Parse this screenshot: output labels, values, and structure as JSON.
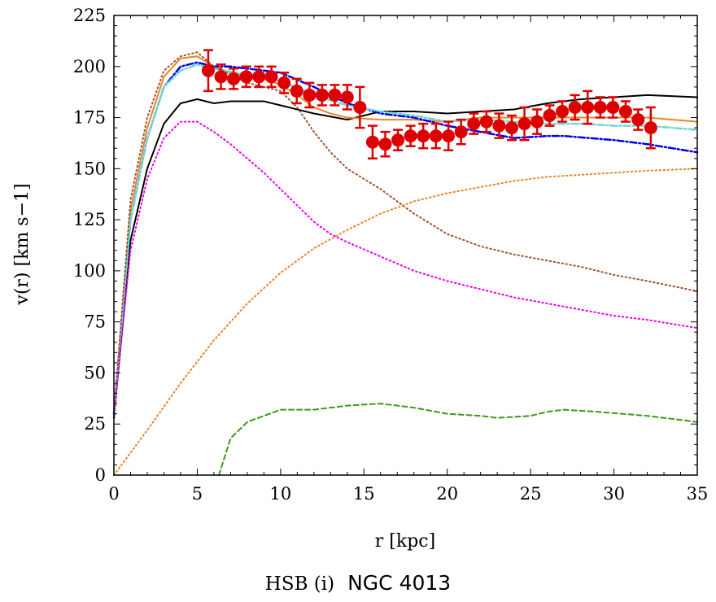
{
  "chart_data": {
    "type": "line",
    "xlabel": "r [kpc]",
    "ylabel": "v(r) [km s−1]",
    "caption_left": "HSB (i)",
    "caption_right": "NGC 4013",
    "xlim": [
      0,
      35
    ],
    "ylim": [
      0,
      225
    ],
    "xticks": [
      0,
      5,
      10,
      15,
      20,
      25,
      30,
      35
    ],
    "yticks": [
      0,
      25,
      50,
      75,
      100,
      125,
      150,
      175,
      200,
      225
    ],
    "grid": false,
    "series": [
      {
        "style": "solid",
        "color": "#000000",
        "points": [
          [
            0,
            28
          ],
          [
            1,
            115
          ],
          [
            2,
            150
          ],
          [
            3,
            172
          ],
          [
            4,
            182
          ],
          [
            5,
            184
          ],
          [
            6,
            182
          ],
          [
            7,
            183
          ],
          [
            8,
            183
          ],
          [
            9,
            183
          ],
          [
            10,
            181
          ],
          [
            12,
            177
          ],
          [
            14,
            174
          ],
          [
            16,
            178
          ],
          [
            18,
            178
          ],
          [
            20,
            177
          ],
          [
            22,
            178
          ],
          [
            24,
            179
          ],
          [
            26,
            182
          ],
          [
            28,
            184
          ],
          [
            30,
            185
          ],
          [
            32,
            186
          ],
          [
            35,
            185
          ]
        ]
      },
      {
        "style": "solid",
        "color": "#e8852a",
        "points": [
          [
            0,
            30
          ],
          [
            1,
            130
          ],
          [
            2,
            170
          ],
          [
            3,
            195
          ],
          [
            4,
            204
          ],
          [
            5,
            205
          ],
          [
            6,
            200
          ],
          [
            7,
            197
          ],
          [
            8,
            195
          ],
          [
            9,
            194
          ],
          [
            10,
            191
          ],
          [
            11,
            186
          ],
          [
            12,
            180
          ],
          [
            13,
            177
          ],
          [
            14,
            175
          ],
          [
            16,
            174
          ],
          [
            18,
            174
          ],
          [
            20,
            173
          ],
          [
            22,
            175
          ],
          [
            24,
            175
          ],
          [
            26,
            175
          ],
          [
            28,
            175
          ],
          [
            30,
            175
          ],
          [
            32,
            175
          ],
          [
            35,
            173
          ]
        ]
      },
      {
        "style": "dashdot",
        "color": "#0000ee",
        "points": [
          [
            0,
            30
          ],
          [
            1,
            125
          ],
          [
            2,
            165
          ],
          [
            3,
            190
          ],
          [
            4,
            200
          ],
          [
            5,
            202
          ],
          [
            6,
            200
          ],
          [
            7,
            200
          ],
          [
            8,
            199
          ],
          [
            10,
            197
          ],
          [
            12,
            190
          ],
          [
            14,
            182
          ],
          [
            16,
            177
          ],
          [
            18,
            175
          ],
          [
            20,
            171
          ],
          [
            22,
            168
          ],
          [
            24,
            165
          ],
          [
            26,
            166
          ],
          [
            27,
            166
          ],
          [
            30,
            164
          ],
          [
            32,
            162
          ],
          [
            35,
            158
          ]
        ]
      },
      {
        "style": "dashdot",
        "color": "#6fd6d6",
        "points": [
          [
            0,
            30
          ],
          [
            1,
            125
          ],
          [
            2,
            165
          ],
          [
            3,
            190
          ],
          [
            4,
            198
          ],
          [
            5,
            201
          ],
          [
            6,
            199
          ],
          [
            8,
            196
          ],
          [
            10,
            193
          ],
          [
            12,
            186
          ],
          [
            14,
            181
          ],
          [
            16,
            178
          ],
          [
            18,
            176
          ],
          [
            20,
            173
          ],
          [
            22,
            174
          ],
          [
            24,
            173
          ],
          [
            26,
            172
          ],
          [
            28,
            172
          ],
          [
            30,
            171
          ],
          [
            32,
            171
          ],
          [
            35,
            169
          ]
        ]
      },
      {
        "style": "dotted",
        "color": "#a0522d",
        "points": [
          [
            0,
            30
          ],
          [
            1,
            135
          ],
          [
            2,
            175
          ],
          [
            3,
            198
          ],
          [
            4,
            205
          ],
          [
            5,
            207
          ],
          [
            6,
            200
          ],
          [
            7,
            196
          ],
          [
            8,
            192
          ],
          [
            9,
            190
          ],
          [
            10,
            188
          ],
          [
            11,
            180
          ],
          [
            12,
            168
          ],
          [
            13,
            158
          ],
          [
            14,
            150
          ],
          [
            16,
            140
          ],
          [
            18,
            128
          ],
          [
            20,
            118
          ],
          [
            22,
            112
          ],
          [
            24,
            108
          ],
          [
            26,
            105
          ],
          [
            28,
            102
          ],
          [
            30,
            98
          ],
          [
            32,
            95
          ],
          [
            35,
            90
          ]
        ]
      },
      {
        "style": "dotted",
        "color": "#ee00ee",
        "points": [
          [
            0,
            30
          ],
          [
            1,
            110
          ],
          [
            2,
            145
          ],
          [
            3,
            165
          ],
          [
            4,
            173
          ],
          [
            5,
            173
          ],
          [
            6,
            168
          ],
          [
            7,
            162
          ],
          [
            8,
            155
          ],
          [
            9,
            148
          ],
          [
            10,
            140
          ],
          [
            11,
            132
          ],
          [
            12,
            124
          ],
          [
            13,
            118
          ],
          [
            14,
            114
          ],
          [
            16,
            107
          ],
          [
            18,
            100
          ],
          [
            20,
            95
          ],
          [
            22,
            91
          ],
          [
            24,
            87
          ],
          [
            26,
            84
          ],
          [
            28,
            81
          ],
          [
            30,
            78
          ],
          [
            32,
            76
          ],
          [
            35,
            72
          ]
        ]
      },
      {
        "style": "dotted",
        "color": "#e8852a",
        "points": [
          [
            0,
            0
          ],
          [
            2,
            22
          ],
          [
            4,
            45
          ],
          [
            6,
            66
          ],
          [
            8,
            84
          ],
          [
            10,
            99
          ],
          [
            12,
            111
          ],
          [
            14,
            120
          ],
          [
            16,
            128
          ],
          [
            18,
            134
          ],
          [
            20,
            138
          ],
          [
            22,
            141
          ],
          [
            24,
            144
          ],
          [
            26,
            146
          ],
          [
            28,
            147
          ],
          [
            30,
            148
          ],
          [
            32,
            149
          ],
          [
            35,
            150
          ]
        ]
      },
      {
        "style": "dashed",
        "color": "#3a9a1a",
        "points": [
          [
            6.3,
            0
          ],
          [
            7,
            18
          ],
          [
            8,
            26
          ],
          [
            10,
            32
          ],
          [
            12,
            32
          ],
          [
            14,
            34
          ],
          [
            16,
            35
          ],
          [
            18,
            33
          ],
          [
            20,
            30
          ],
          [
            22,
            29
          ],
          [
            23,
            28
          ],
          [
            25,
            29
          ],
          [
            26,
            31
          ],
          [
            27,
            32
          ],
          [
            29,
            31
          ],
          [
            32,
            29
          ],
          [
            35,
            26
          ]
        ]
      }
    ],
    "observed": {
      "color": "#dd0000",
      "points": [
        [
          5.66,
          198,
          10
        ],
        [
          6.42,
          195,
          6
        ],
        [
          7.18,
          194,
          5
        ],
        [
          7.94,
          195,
          5
        ],
        [
          8.7,
          195,
          5
        ],
        [
          9.45,
          195,
          5
        ],
        [
          10.21,
          192,
          5
        ],
        [
          10.97,
          188,
          6
        ],
        [
          11.73,
          186,
          6
        ],
        [
          12.49,
          186,
          5
        ],
        [
          13.25,
          186,
          5
        ],
        [
          14.0,
          185,
          6
        ],
        [
          14.76,
          180,
          10
        ],
        [
          15.52,
          163,
          8
        ],
        [
          16.28,
          162,
          6
        ],
        [
          17.04,
          164,
          5
        ],
        [
          17.8,
          166,
          5
        ],
        [
          18.56,
          166,
          6
        ],
        [
          19.32,
          166,
          6
        ],
        [
          20.07,
          166,
          7
        ],
        [
          20.83,
          168,
          6
        ],
        [
          21.59,
          172,
          5
        ],
        [
          22.35,
          173,
          5
        ],
        [
          23.11,
          171,
          6
        ],
        [
          23.87,
          170,
          6
        ],
        [
          24.63,
          172,
          8
        ],
        [
          25.39,
          173,
          6
        ],
        [
          26.14,
          176,
          5
        ],
        [
          26.9,
          178,
          5
        ],
        [
          27.66,
          180,
          6
        ],
        [
          28.42,
          180,
          8
        ],
        [
          29.18,
          180,
          5
        ],
        [
          29.94,
          180,
          5
        ],
        [
          30.7,
          178,
          5
        ],
        [
          31.45,
          174,
          5
        ],
        [
          32.21,
          170,
          10
        ]
      ]
    }
  }
}
